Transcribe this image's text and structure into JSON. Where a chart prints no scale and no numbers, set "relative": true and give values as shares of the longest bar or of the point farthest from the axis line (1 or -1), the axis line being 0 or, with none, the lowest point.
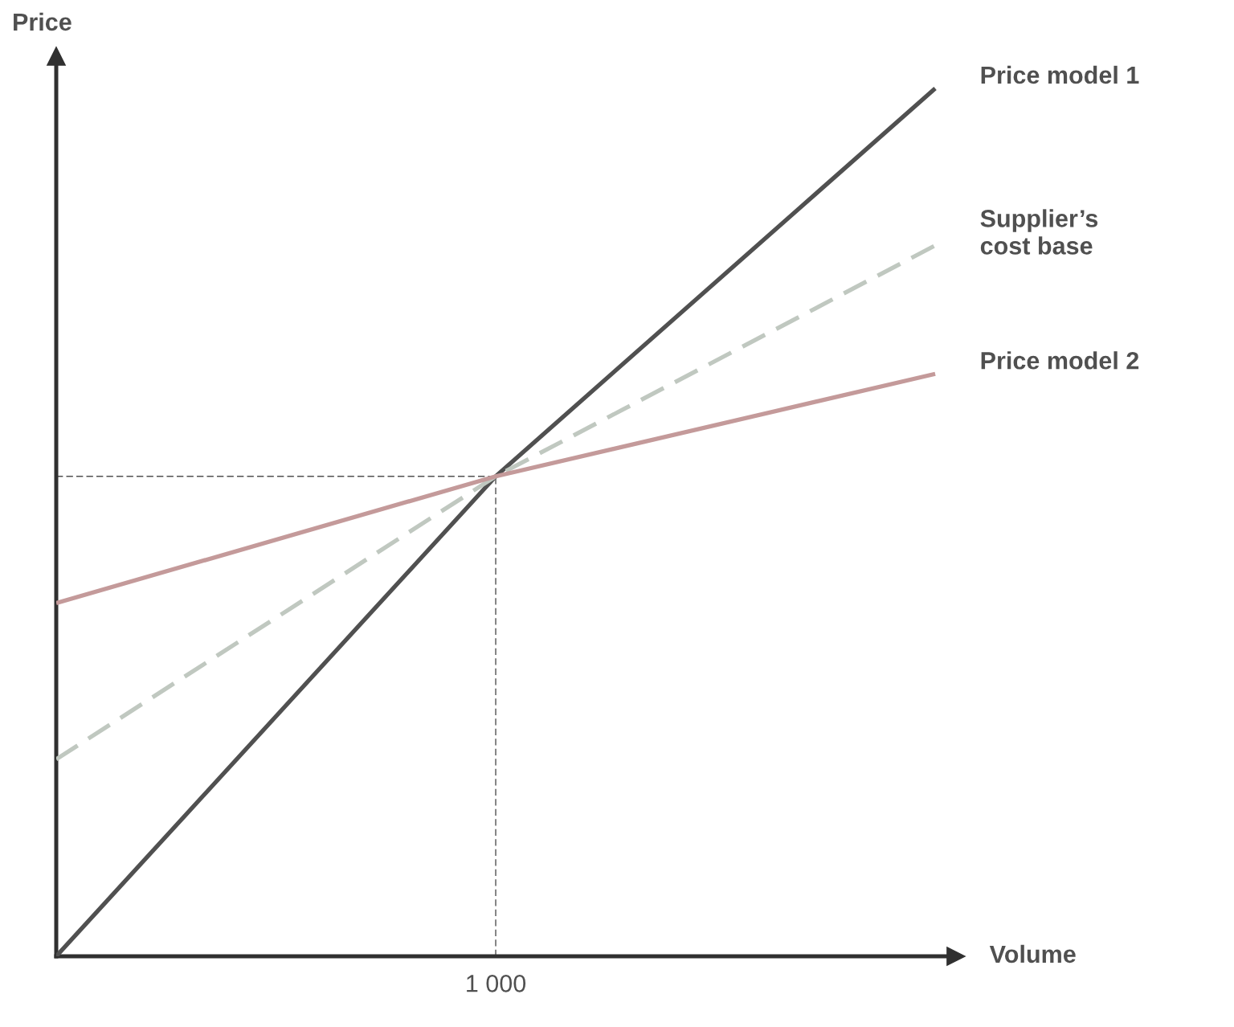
{
  "chart_data": {
    "type": "line",
    "relative": true,
    "xlabel": "Volume",
    "ylabel": "Price",
    "categories": [
      null,
      null,
      null
    ],
    "series": [
      {
        "name": "Price model 1",
        "color": "#505050",
        "values": [
          0,
          0.553,
          1
        ]
      },
      {
        "name": "Supplier’s\ncost base",
        "color": "#c0c8c0",
        "line_style": "dashed",
        "values": [
          0.227,
          0.553,
          0.819
        ]
      },
      {
        "name": "Price model 2",
        "color": "#c49a9a",
        "values": [
          0.407,
          0.553,
          0.671
        ]
      }
    ],
    "ref_lines": [
      {
        "axis": "y",
        "value": 0.553,
        "color": "#505050",
        "line_style": "dashed"
      }
    ],
    "annotations": [
      "1 000"
    ],
    "legend": false
  }
}
